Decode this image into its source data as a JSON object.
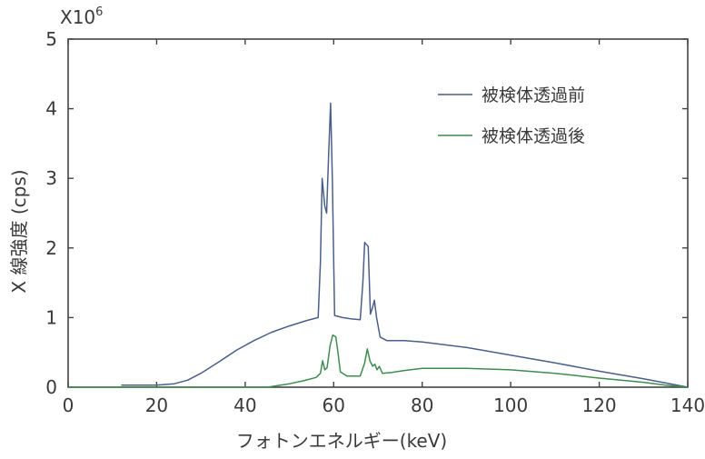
{
  "chart_data": {
    "type": "line",
    "xlabel": "フォトンエネルギー(keV)",
    "ylabel": "X 線強度 (cps)",
    "y_multiplier": "X10",
    "y_multiplier_exponent": "6",
    "xlim": [
      0,
      140
    ],
    "ylim": [
      0,
      5
    ],
    "x_ticks": [
      0,
      20,
      40,
      60,
      80,
      100,
      120,
      140
    ],
    "y_ticks": [
      0,
      1,
      2,
      3,
      4,
      5
    ],
    "grid": false,
    "legend_position": "top-right",
    "series": [
      {
        "name": "被検体透過前",
        "color": "#4a5f8a",
        "points": [
          [
            12,
            0.03
          ],
          [
            20,
            0.03
          ],
          [
            24,
            0.05
          ],
          [
            27,
            0.1
          ],
          [
            30,
            0.2
          ],
          [
            34,
            0.36
          ],
          [
            38,
            0.53
          ],
          [
            42,
            0.67
          ],
          [
            46,
            0.79
          ],
          [
            50,
            0.88
          ],
          [
            54,
            0.96
          ],
          [
            56.5,
            1.0
          ],
          [
            57.0,
            1.8
          ],
          [
            57.4,
            3.0
          ],
          [
            58.0,
            2.6
          ],
          [
            58.4,
            2.5
          ],
          [
            58.9,
            3.4
          ],
          [
            59.3,
            4.08
          ],
          [
            59.7,
            3.0
          ],
          [
            60.2,
            1.03
          ],
          [
            62,
            1.0
          ],
          [
            64,
            0.98
          ],
          [
            66,
            0.97
          ],
          [
            66.6,
            1.5
          ],
          [
            67.0,
            2.08
          ],
          [
            67.8,
            2.02
          ],
          [
            68.3,
            1.05
          ],
          [
            68.8,
            1.15
          ],
          [
            69.2,
            1.25
          ],
          [
            69.7,
            1.0
          ],
          [
            70.5,
            0.72
          ],
          [
            72,
            0.67
          ],
          [
            76,
            0.67
          ],
          [
            80,
            0.65
          ],
          [
            90,
            0.57
          ],
          [
            100,
            0.46
          ],
          [
            110,
            0.35
          ],
          [
            120,
            0.23
          ],
          [
            130,
            0.12
          ],
          [
            136,
            0.05
          ],
          [
            140,
            0.0
          ]
        ]
      },
      {
        "name": "被検体透過後",
        "color": "#3f8c4e",
        "points": [
          [
            0,
            0.0
          ],
          [
            20,
            0.0
          ],
          [
            40,
            0.0
          ],
          [
            45,
            0.0
          ],
          [
            47,
            0.02
          ],
          [
            50,
            0.05
          ],
          [
            53,
            0.09
          ],
          [
            56,
            0.14
          ],
          [
            57,
            0.2
          ],
          [
            57.5,
            0.38
          ],
          [
            58.0,
            0.25
          ],
          [
            58.5,
            0.28
          ],
          [
            59.2,
            0.6
          ],
          [
            59.8,
            0.75
          ],
          [
            60.5,
            0.72
          ],
          [
            61.0,
            0.48
          ],
          [
            61.5,
            0.22
          ],
          [
            63,
            0.16
          ],
          [
            66,
            0.16
          ],
          [
            67.0,
            0.35
          ],
          [
            67.6,
            0.55
          ],
          [
            68.2,
            0.38
          ],
          [
            68.8,
            0.3
          ],
          [
            69.3,
            0.33
          ],
          [
            69.8,
            0.25
          ],
          [
            70.3,
            0.3
          ],
          [
            71,
            0.2
          ],
          [
            73,
            0.21
          ],
          [
            76,
            0.24
          ],
          [
            80,
            0.27
          ],
          [
            90,
            0.27
          ],
          [
            100,
            0.25
          ],
          [
            110,
            0.2
          ],
          [
            120,
            0.13
          ],
          [
            130,
            0.07
          ],
          [
            135,
            0.03
          ],
          [
            140,
            0.0
          ]
        ]
      }
    ]
  }
}
